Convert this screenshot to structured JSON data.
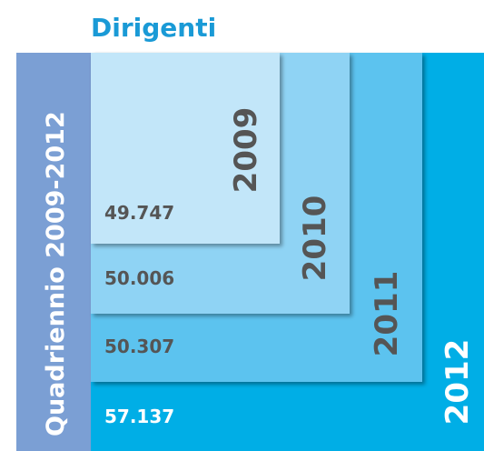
{
  "title": "Dirigenti",
  "side_label": "Quadriennio 2009-2012",
  "items": [
    {
      "year": "2012",
      "value": "57.137"
    },
    {
      "year": "2011",
      "value": "50.307"
    },
    {
      "year": "2010",
      "value": "50.006"
    },
    {
      "year": "2009",
      "value": "49.747"
    }
  ]
}
